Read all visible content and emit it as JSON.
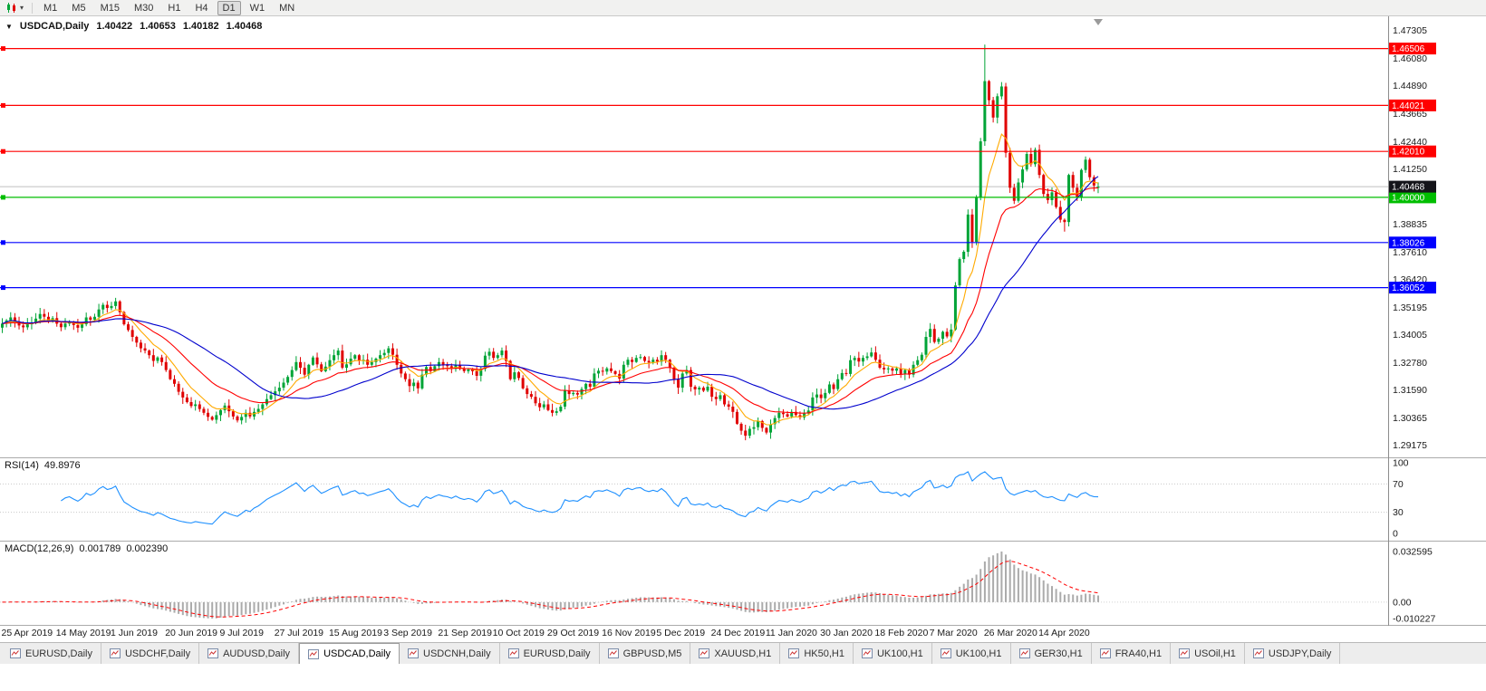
{
  "toolbar": {
    "timeframes": [
      "M1",
      "M5",
      "M15",
      "M30",
      "H1",
      "H4",
      "D1",
      "W1",
      "MN"
    ],
    "active_timeframe": "D1",
    "icons": [
      "candlestick-chart-icon",
      "dropdown-caret-icon"
    ]
  },
  "chart": {
    "title": {
      "caret": "▼",
      "symbol": "USDCAD,Daily",
      "open": "1.40422",
      "high": "1.40653",
      "low": "1.40182",
      "close": "1.40468"
    },
    "y_axis_ticks": [
      "1.47305",
      "1.46080",
      "1.44890",
      "1.43665",
      "1.42440",
      "1.41250",
      "1.38835",
      "1.37610",
      "1.36420",
      "1.35195",
      "1.34005",
      "1.32780",
      "1.31590",
      "1.30365",
      "1.29175"
    ],
    "price_lines": [
      {
        "price": 1.46506,
        "label": "1.46506",
        "color": "#FF0000"
      },
      {
        "price": 1.44021,
        "label": "1.44021",
        "color": "#FF0000"
      },
      {
        "price": 1.4201,
        "label": "1.42010",
        "color": "#FF0000"
      },
      {
        "price": 1.4,
        "label": "1.40000",
        "color": "#00BE00"
      },
      {
        "price": 1.38026,
        "label": "1.38026",
        "color": "#0000FF"
      },
      {
        "price": 1.36052,
        "label": "1.36052",
        "color": "#0000FF"
      }
    ],
    "current_price": {
      "price": 1.40468,
      "label": "1.40468",
      "line_color": "#BFBFBF",
      "label_bg": "#15151A"
    },
    "x_axis_labels": [
      "25 Apr 2019",
      "14 May 2019",
      "1 Jun 2019",
      "20 Jun 2019",
      "9 Jul 2019",
      "27 Jul 2019",
      "15 Aug 2019",
      "3 Sep 2019",
      "21 Sep 2019",
      "10 Oct 2019",
      "29 Oct 2019",
      "16 Nov 2019",
      "5 Dec 2019",
      "24 Dec 2019",
      "11 Jan 2020",
      "30 Jan 2020",
      "18 Feb 2020",
      "7 Mar 2020",
      "26 Mar 2020",
      "14 Apr 2020"
    ],
    "colors": {
      "candle_up": "#00A437",
      "candle_down": "#E00000",
      "ma_fast": "#FFAA00",
      "ma_mid": "#FF0000",
      "ma_slow": "#0000CD",
      "background": "#FFFFFF"
    }
  },
  "rsi": {
    "name": "RSI(14)",
    "value": "49.8976",
    "levels": [
      "100",
      "70",
      "30",
      "0"
    ],
    "line_color": "#1E90FF"
  },
  "macd": {
    "name": "MACD(12,26,9)",
    "value_main": "0.001789",
    "value_signal": "0.002390",
    "levels": [
      "0.032595",
      "0.00",
      "-0.010227"
    ],
    "histogram_color": "#ABABAB",
    "signal_color": "#FF0000"
  },
  "tabs": {
    "items": [
      "EURUSD,Daily",
      "USDCHF,Daily",
      "AUDUSD,Daily",
      "USDCAD,Daily",
      "USDCNH,Daily",
      "EURUSD,Daily",
      "GBPUSD,M5",
      "XAUUSD,H1",
      "HK50,H1",
      "UK100,H1",
      "UK100,H1",
      "GER30,H1",
      "FRA40,H1",
      "USOil,H1",
      "USDJPY,Daily"
    ],
    "active_index": 3
  },
  "chart_data": {
    "type": "candlestick",
    "symbol": "USDCAD",
    "timeframe": "Daily",
    "last_candle": {
      "open": 1.40422,
      "high": 1.40653,
      "low": 1.40182,
      "close": 1.40468
    },
    "y_range": [
      1.2895,
      1.476
    ],
    "x_label_step": 13,
    "ma_periods": [
      8,
      21,
      34
    ],
    "high_overrides": {
      "234": 1.4668
    },
    "low_overrides": {
      "253": 1.385
    },
    "closes": [
      1.3448,
      1.3462,
      1.3475,
      1.3455,
      1.344,
      1.3432,
      1.3445,
      1.3452,
      1.347,
      1.349,
      1.3478,
      1.346,
      1.3472,
      1.3448,
      1.3432,
      1.3448,
      1.3455,
      1.3442,
      1.343,
      1.3445,
      1.3475,
      1.3465,
      1.3478,
      1.351,
      1.353,
      1.3516,
      1.3525,
      1.3545,
      1.3498,
      1.3445,
      1.342,
      1.339,
      1.3365,
      1.334,
      1.333,
      1.331,
      1.3285,
      1.33,
      1.328,
      1.3245,
      1.3205,
      1.3185,
      1.315,
      1.3125,
      1.3105,
      1.3088,
      1.3095,
      1.3075,
      1.3058,
      1.304,
      1.3028,
      1.3048,
      1.307,
      1.309,
      1.3065,
      1.3042,
      1.3025,
      1.304,
      1.3058,
      1.3042,
      1.3062,
      1.3075,
      1.3095,
      1.3118,
      1.3135,
      1.3152,
      1.3168,
      1.319,
      1.3215,
      1.3245,
      1.328,
      1.3255,
      1.3225,
      1.3268,
      1.33,
      1.327,
      1.324,
      1.326,
      1.3288,
      1.331,
      1.333,
      1.3255,
      1.327,
      1.3295,
      1.331,
      1.3285,
      1.329,
      1.3268,
      1.328,
      1.3295,
      1.331,
      1.332,
      1.334,
      1.3312,
      1.3268,
      1.323,
      1.3205,
      1.3175,
      1.319,
      1.3165,
      1.3225,
      1.3258,
      1.324,
      1.3262,
      1.328,
      1.3268,
      1.3262,
      1.325,
      1.3268,
      1.325,
      1.324,
      1.3248,
      1.324,
      1.322,
      1.325,
      1.3308,
      1.3325,
      1.3298,
      1.331,
      1.333,
      1.3285,
      1.3205,
      1.3235,
      1.321,
      1.3165,
      1.314,
      1.3128,
      1.31,
      1.3082,
      1.3095,
      1.307,
      1.3058,
      1.3065,
      1.3085,
      1.3155,
      1.314,
      1.3145,
      1.3138,
      1.3162,
      1.3185,
      1.3172,
      1.323,
      1.3242,
      1.3238,
      1.3252,
      1.324,
      1.3228,
      1.3208,
      1.3268,
      1.329,
      1.328,
      1.3298,
      1.3302,
      1.3285,
      1.3278,
      1.329,
      1.3282,
      1.331,
      1.329,
      1.3255,
      1.3205,
      1.3168,
      1.323,
      1.3245,
      1.3172,
      1.316,
      1.3168,
      1.3155,
      1.3172,
      1.3128,
      1.3118,
      1.3135,
      1.3095,
      1.3085,
      1.3062,
      1.301,
      1.298,
      1.2958,
      1.2988,
      1.2995,
      1.3022,
      1.2992,
      1.2972,
      1.3008,
      1.3035,
      1.3058,
      1.3052,
      1.3042,
      1.3062,
      1.3048,
      1.3038,
      1.3055,
      1.3068,
      1.3125,
      1.3138,
      1.3122,
      1.3145,
      1.3182,
      1.3162,
      1.3205,
      1.3232,
      1.3228,
      1.3288,
      1.3298,
      1.3282,
      1.3298,
      1.3305,
      1.3322,
      1.329,
      1.3255,
      1.3248,
      1.3252,
      1.3242,
      1.3252,
      1.3228,
      1.3245,
      1.3225,
      1.3268,
      1.3288,
      1.3312,
      1.339,
      1.3425,
      1.3368,
      1.3382,
      1.3412,
      1.3392,
      1.3422,
      1.3615,
      1.373,
      1.3762,
      1.3925,
      1.3805,
      1.3998,
      1.4245,
      1.4508,
      1.4425,
      1.4349,
      1.4442,
      1.4485,
      1.4195,
      1.4042,
      1.3985,
      1.4065,
      1.4122,
      1.419,
      1.4145,
      1.4208,
      1.4098,
      1.4015,
      1.3988,
      1.4022,
      1.3958,
      1.3902,
      1.3892,
      1.4098,
      1.4042,
      1.3998,
      1.412,
      1.4165,
      1.4088,
      1.4052,
      1.40468
    ]
  }
}
